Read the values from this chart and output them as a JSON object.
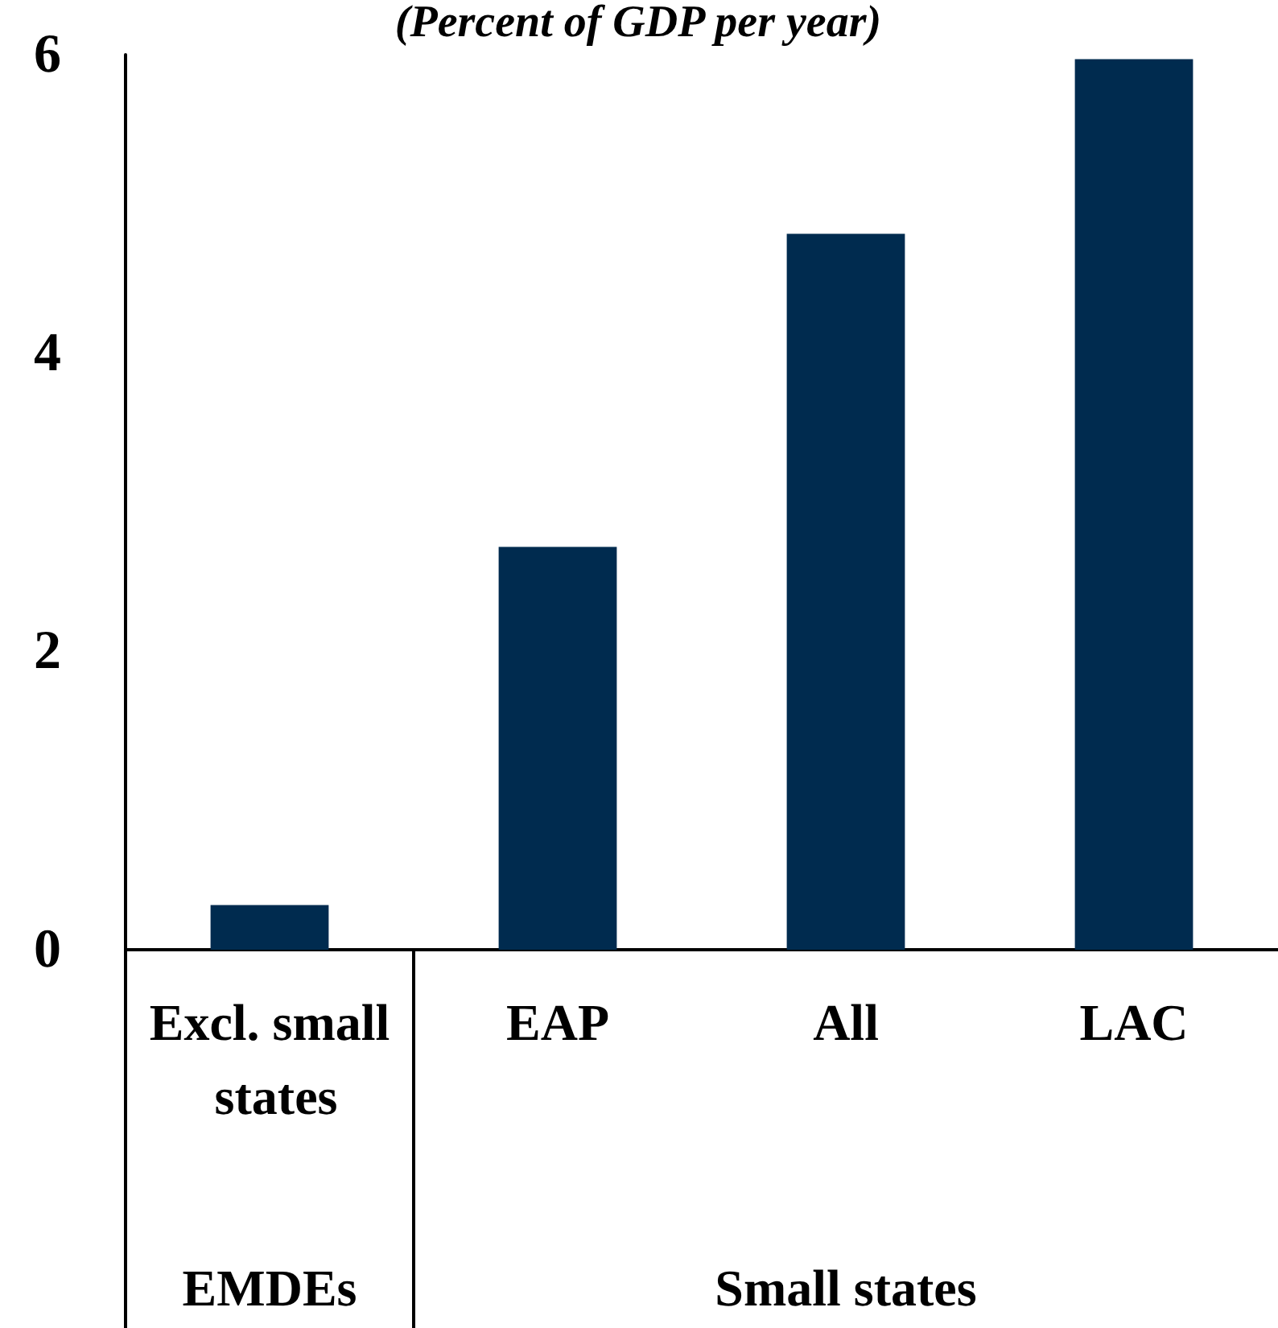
{
  "chart_data": {
    "type": "bar",
    "subtitle": "(Percent of GDP per year)",
    "categories": [
      "Excl. small states",
      "EAP",
      "All",
      "LAC"
    ],
    "values": [
      0.3,
      2.7,
      4.8,
      5.97
    ],
    "color": "#002b4f",
    "ylim": [
      0,
      6
    ],
    "yticks": [
      0,
      2,
      4,
      6
    ],
    "grid": false,
    "annotations": [
      "EMDEs",
      "Small states"
    ]
  }
}
